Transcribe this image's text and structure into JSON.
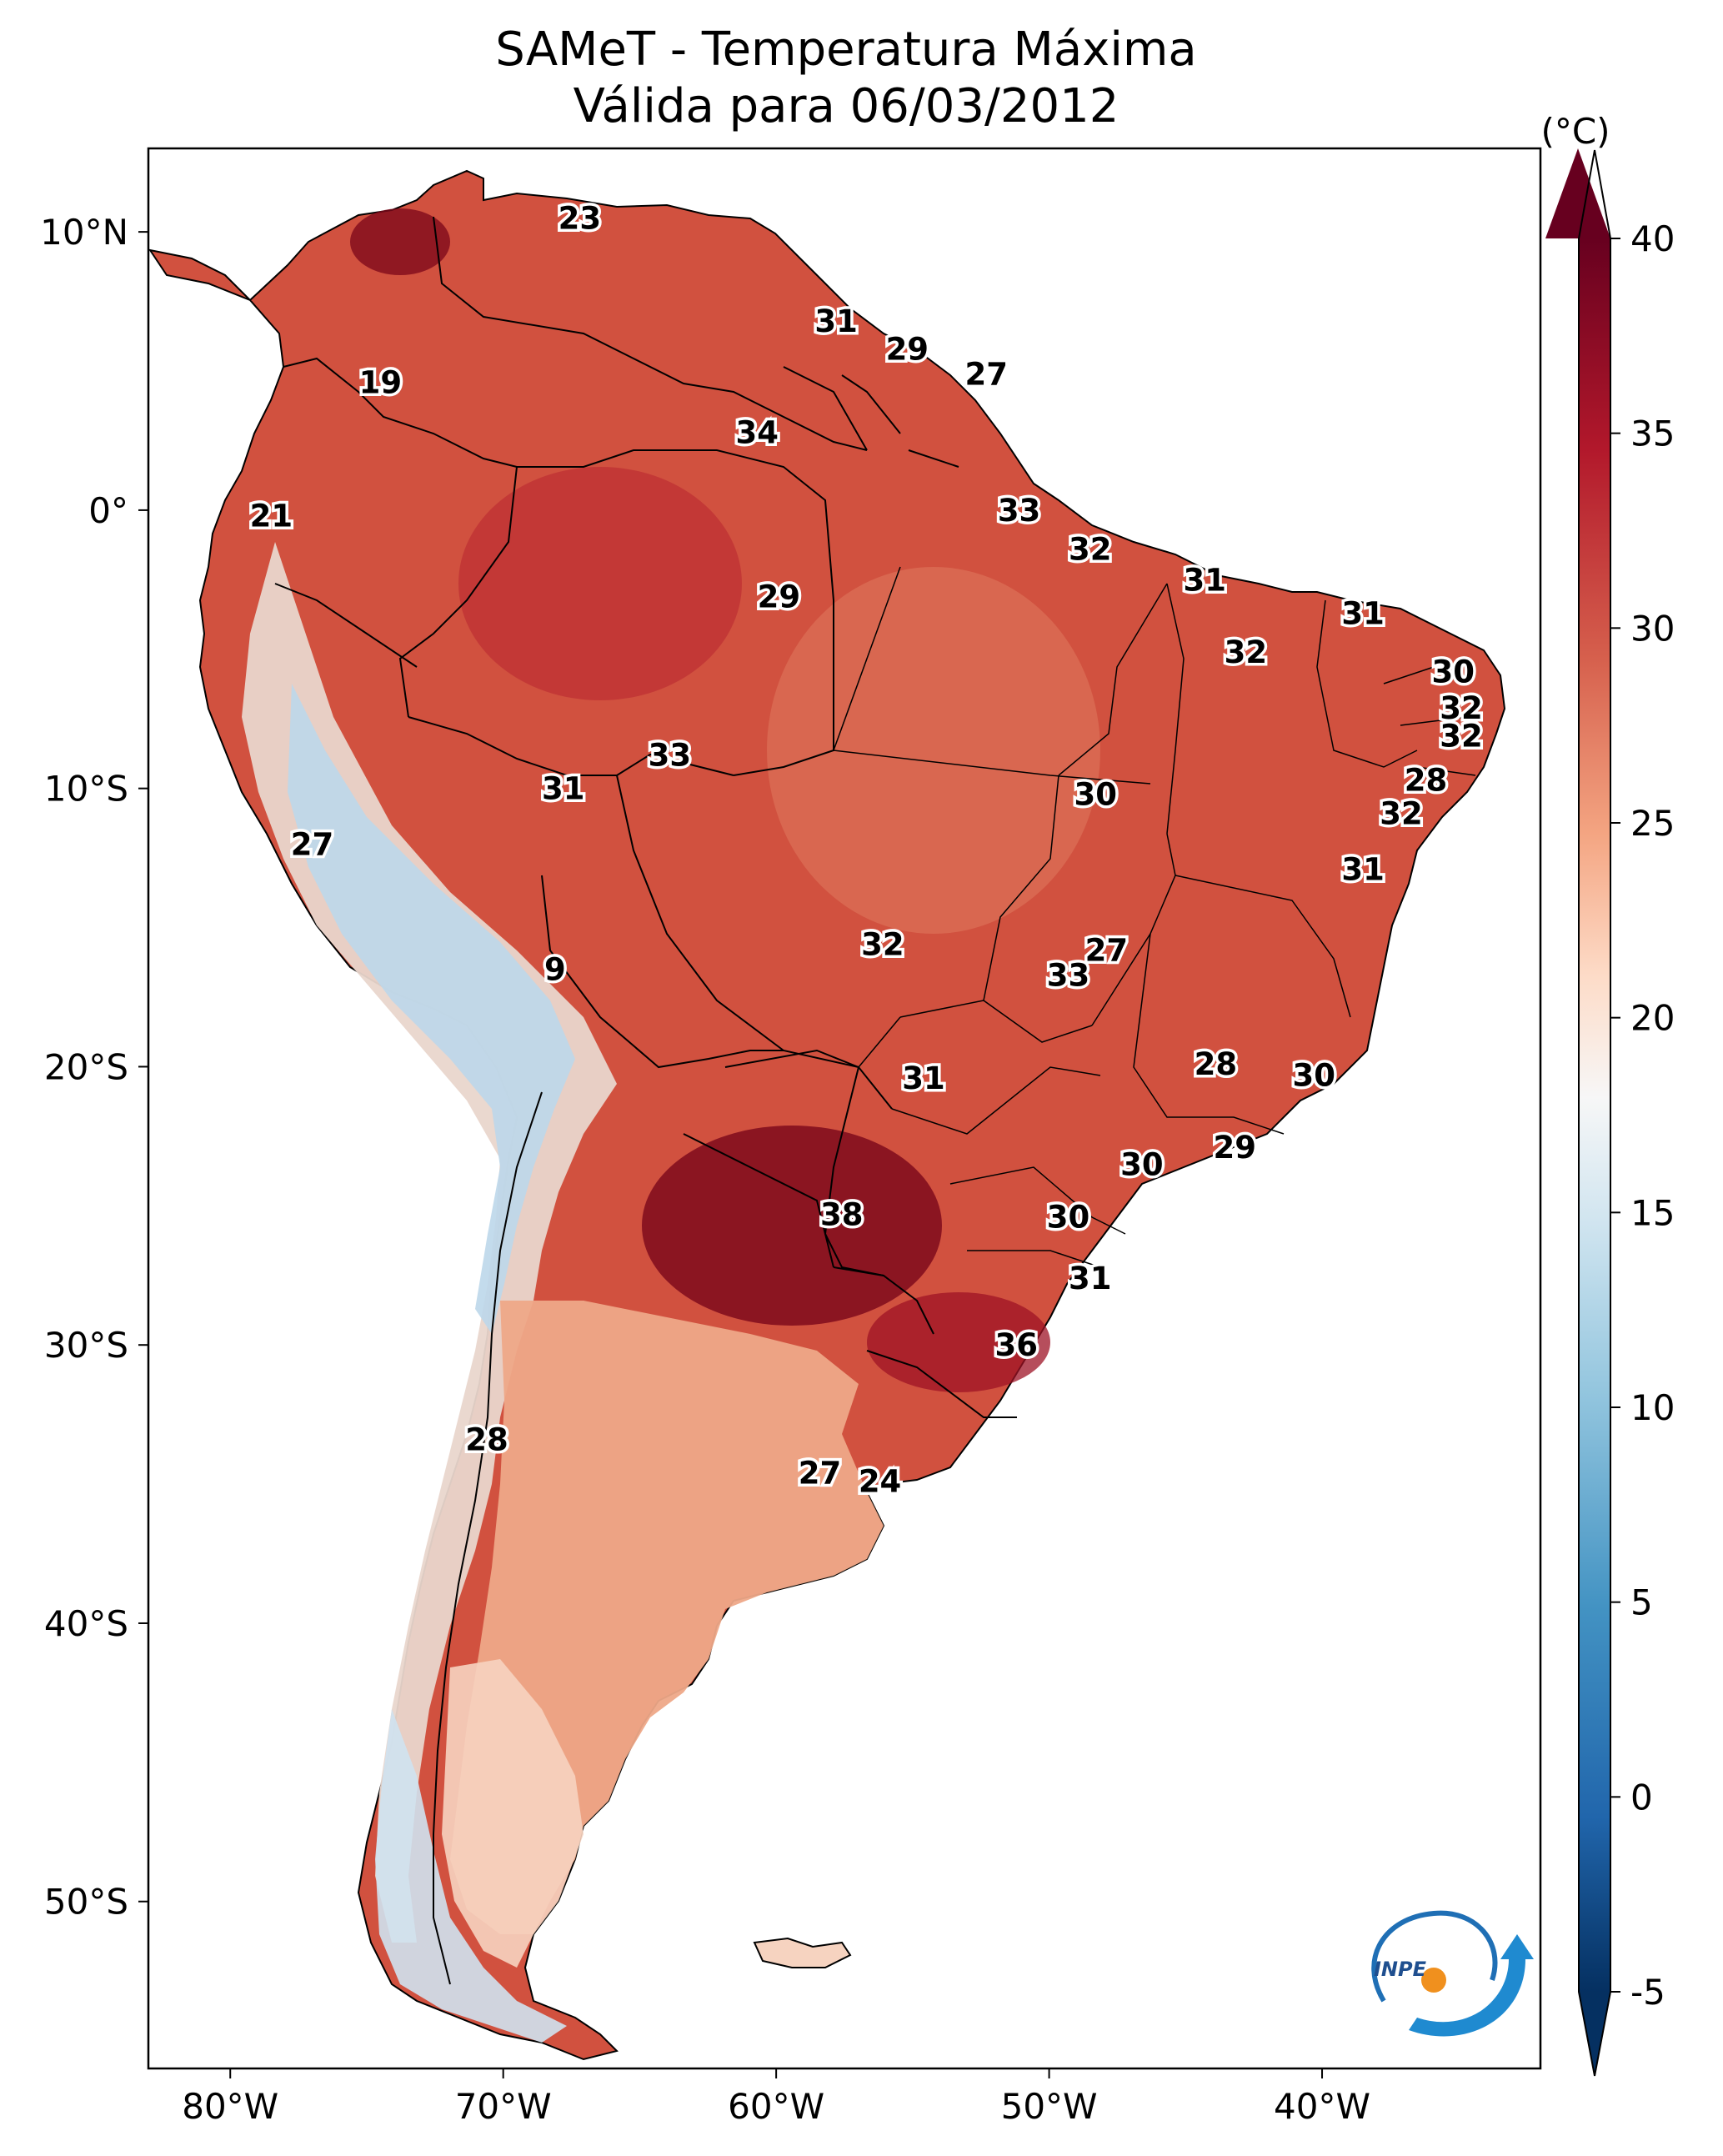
{
  "title": {
    "line1": "SAMeT - Temperatura Máxima",
    "line2": "Válida para 06/03/2012"
  },
  "map": {
    "lon_range": [
      -83,
      -32
    ],
    "lat_range": [
      -56,
      13
    ],
    "lon_ticks": [
      {
        "value": -80,
        "label": "80°W"
      },
      {
        "value": -70,
        "label": "70°W"
      },
      {
        "value": -60,
        "label": "60°W"
      },
      {
        "value": -50,
        "label": "50°W"
      },
      {
        "value": -40,
        "label": "40°W"
      }
    ],
    "lat_ticks": [
      {
        "value": 10,
        "label": "10°N"
      },
      {
        "value": 0,
        "label": "0°"
      },
      {
        "value": -10,
        "label": "10°S"
      },
      {
        "value": -20,
        "label": "20°S"
      },
      {
        "value": -30,
        "label": "30°S"
      },
      {
        "value": -40,
        "label": "40°S"
      },
      {
        "value": -50,
        "label": "50°S"
      }
    ],
    "station_values": [
      {
        "lon": -67.2,
        "lat": 10.5,
        "value": "23"
      },
      {
        "lon": -74.5,
        "lat": 4.6,
        "value": "19"
      },
      {
        "lon": -78.5,
        "lat": -0.2,
        "value": "21"
      },
      {
        "lon": -57.8,
        "lat": 6.8,
        "value": "31"
      },
      {
        "lon": -55.2,
        "lat": 5.8,
        "value": "29"
      },
      {
        "lon": -52.3,
        "lat": 4.9,
        "value": "27"
      },
      {
        "lon": -60.7,
        "lat": 2.8,
        "value": "34"
      },
      {
        "lon": -51.1,
        "lat": 0.0,
        "value": "33"
      },
      {
        "lon": -48.5,
        "lat": -1.4,
        "value": "32"
      },
      {
        "lon": -44.3,
        "lat": -2.5,
        "value": "31"
      },
      {
        "lon": -38.5,
        "lat": -3.7,
        "value": "31"
      },
      {
        "lon": -42.8,
        "lat": -5.1,
        "value": "32"
      },
      {
        "lon": -59.9,
        "lat": -3.1,
        "value": "29"
      },
      {
        "lon": -35.2,
        "lat": -5.8,
        "value": "30"
      },
      {
        "lon": -34.9,
        "lat": -7.1,
        "value": "32"
      },
      {
        "lon": -34.9,
        "lat": -8.1,
        "value": "32"
      },
      {
        "lon": -36.2,
        "lat": -9.7,
        "value": "28"
      },
      {
        "lon": -37.1,
        "lat": -10.9,
        "value": "32"
      },
      {
        "lon": -38.5,
        "lat": -12.9,
        "value": "31"
      },
      {
        "lon": -63.9,
        "lat": -8.8,
        "value": "33"
      },
      {
        "lon": -67.8,
        "lat": -10.0,
        "value": "31"
      },
      {
        "lon": -48.3,
        "lat": -10.2,
        "value": "30"
      },
      {
        "lon": -77.0,
        "lat": -12.0,
        "value": "27"
      },
      {
        "lon": -68.1,
        "lat": -16.5,
        "value": "9"
      },
      {
        "lon": -56.1,
        "lat": -15.6,
        "value": "32"
      },
      {
        "lon": -47.9,
        "lat": -15.8,
        "value": "27"
      },
      {
        "lon": -49.3,
        "lat": -16.7,
        "value": "33"
      },
      {
        "lon": -54.6,
        "lat": -20.4,
        "value": "31"
      },
      {
        "lon": -43.9,
        "lat": -19.9,
        "value": "28"
      },
      {
        "lon": -40.3,
        "lat": -20.3,
        "value": "30"
      },
      {
        "lon": -43.2,
        "lat": -22.9,
        "value": "29"
      },
      {
        "lon": -46.6,
        "lat": -23.5,
        "value": "30"
      },
      {
        "lon": -57.6,
        "lat": -25.3,
        "value": "38"
      },
      {
        "lon": -49.3,
        "lat": -25.4,
        "value": "30"
      },
      {
        "lon": -48.5,
        "lat": -27.6,
        "value": "31"
      },
      {
        "lon": -51.2,
        "lat": -30.0,
        "value": "36"
      },
      {
        "lon": -70.6,
        "lat": -33.4,
        "value": "28"
      },
      {
        "lon": -58.4,
        "lat": -34.6,
        "value": "27"
      },
      {
        "lon": -56.2,
        "lat": -34.9,
        "value": "24"
      }
    ],
    "logo_text": "INPE"
  },
  "colorbar": {
    "unit": "(°C)",
    "min": -7,
    "max": 42,
    "ticks": [
      {
        "value": 40,
        "label": "40"
      },
      {
        "value": 35,
        "label": "35"
      },
      {
        "value": 30,
        "label": "30"
      },
      {
        "value": 25,
        "label": "25"
      },
      {
        "value": 20,
        "label": "20"
      },
      {
        "value": 15,
        "label": "15"
      },
      {
        "value": 10,
        "label": "10"
      },
      {
        "value": 5,
        "label": "5"
      },
      {
        "value": 0,
        "label": "0"
      },
      {
        "value": -5,
        "label": "-5"
      }
    ],
    "colors": [
      "#053061",
      "#2166ac",
      "#4393c3",
      "#92c5de",
      "#d1e5f0",
      "#f7f7f7",
      "#fddbc7",
      "#f4a582",
      "#d6604d",
      "#b2182b",
      "#67001f"
    ]
  }
}
